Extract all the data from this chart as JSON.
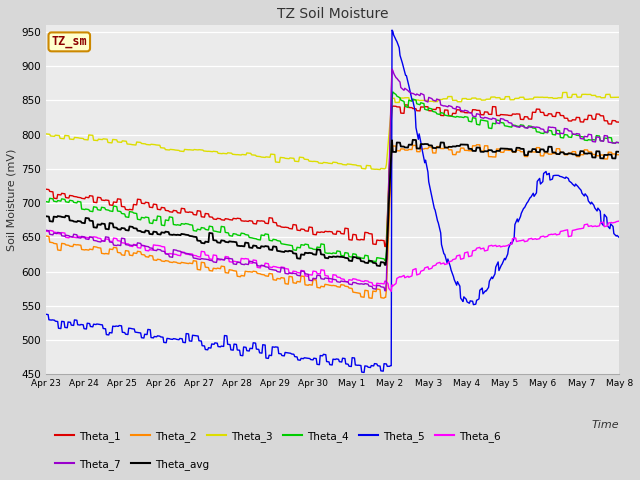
{
  "title": "TZ Soil Moisture",
  "ylabel": "Soil Moisture (mV)",
  "xlabel": "Time",
  "legend_label": "TZ_sm",
  "ylim": [
    450,
    960
  ],
  "yticks": [
    450,
    500,
    550,
    600,
    650,
    700,
    750,
    800,
    850,
    900,
    950
  ],
  "xlim": [
    0,
    15
  ],
  "tick_labels": [
    "Apr 23",
    "Apr 24",
    "Apr 25",
    "Apr 26",
    "Apr 27",
    "Apr 28",
    "Apr 29",
    "Apr 30",
    "May 1",
    "May 2",
    "May 3",
    "May 4",
    "May 5",
    "May 6",
    "May 7",
    "May 8"
  ],
  "rain_start": 8.9,
  "rain_peak": 9.05,
  "bg_color": "#ebebeb",
  "grid_color": "#ffffff",
  "series": {
    "Theta_1": {
      "color": "#dd0000",
      "lw": 1.0
    },
    "Theta_2": {
      "color": "#ff8800",
      "lw": 1.0
    },
    "Theta_3": {
      "color": "#dddd00",
      "lw": 1.0
    },
    "Theta_4": {
      "color": "#00cc00",
      "lw": 1.0
    },
    "Theta_5": {
      "color": "#0000ee",
      "lw": 1.0
    },
    "Theta_6": {
      "color": "#ff00ff",
      "lw": 1.0
    },
    "Theta_7": {
      "color": "#9900cc",
      "lw": 1.0
    },
    "Theta_avg": {
      "color": "#000000",
      "lw": 1.3
    }
  },
  "legend_ncol": 6,
  "legend_row2": [
    "Theta_7",
    "Theta_avg"
  ]
}
